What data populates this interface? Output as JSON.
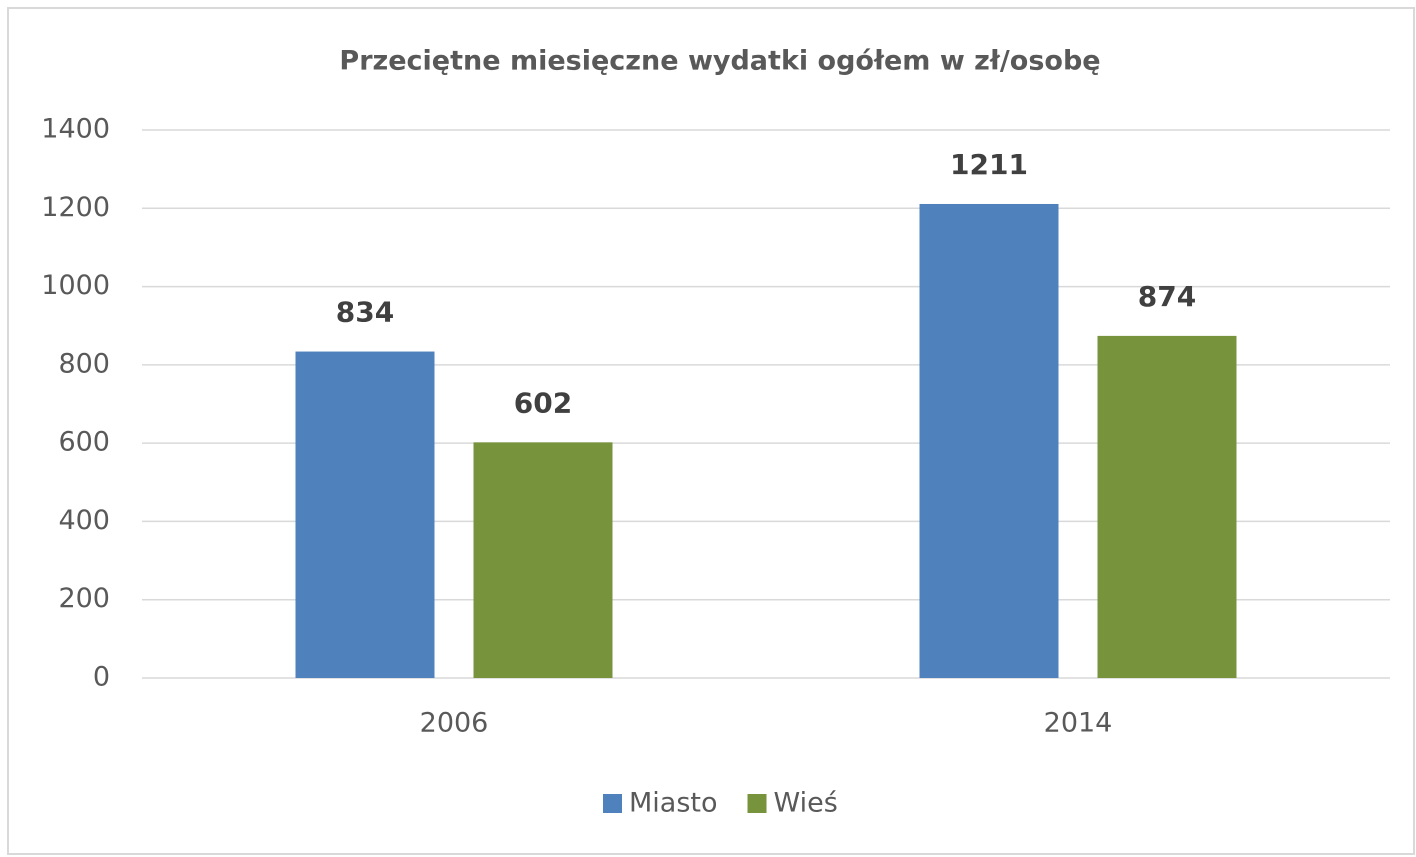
{
  "chart_data": {
    "type": "bar",
    "title": "Przeciętne miesięczne wydatki ogółem w zł/osobę",
    "categories": [
      "2006",
      "2014"
    ],
    "series": [
      {
        "name": "Miasto",
        "color": "#4f81bd",
        "values": [
          834,
          1211
        ]
      },
      {
        "name": "Wieś",
        "color": "#77933c",
        "values": [
          602,
          874
        ]
      }
    ],
    "ylim": [
      0,
      1400
    ],
    "yticks": [
      0,
      200,
      400,
      600,
      800,
      1000,
      1200,
      1400
    ],
    "grid": true,
    "legend": "bottom"
  }
}
